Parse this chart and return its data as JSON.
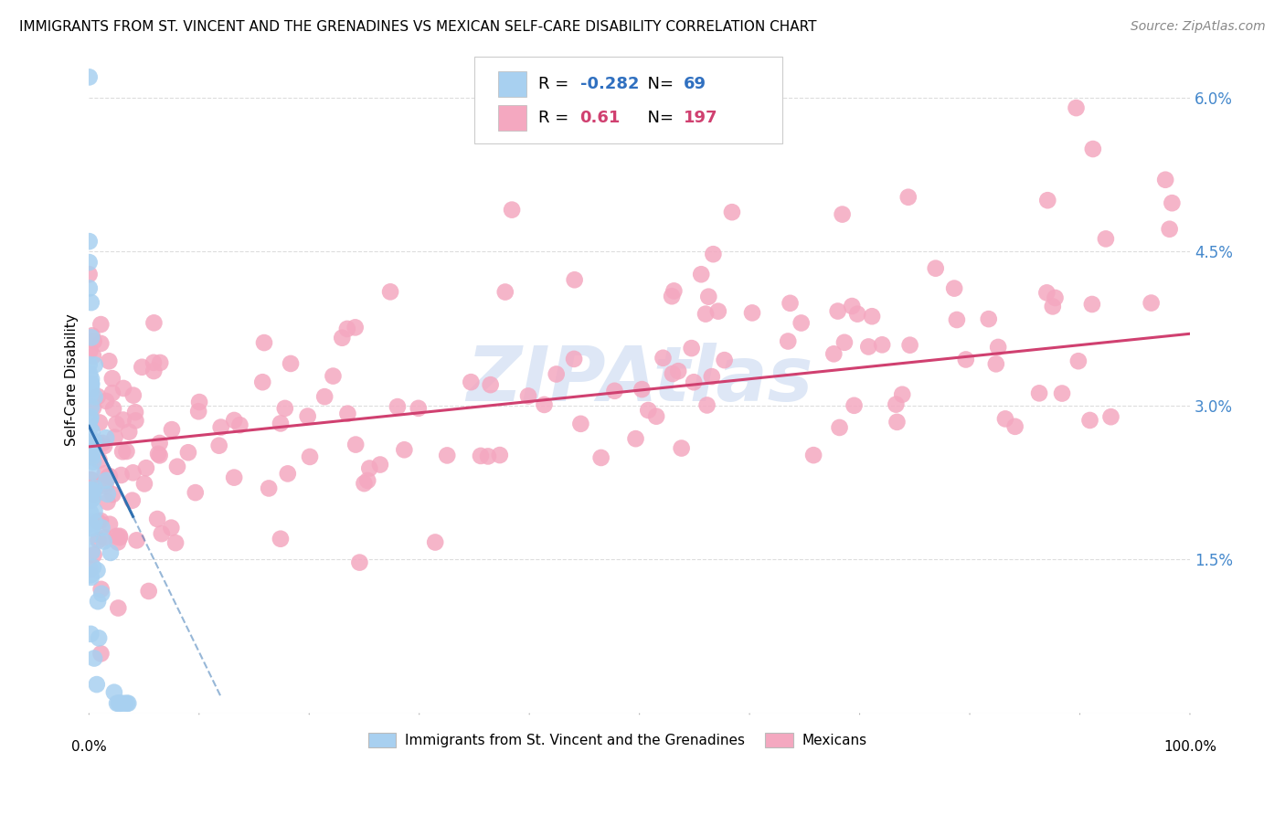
{
  "title": "IMMIGRANTS FROM ST. VINCENT AND THE GRENADINES VS MEXICAN SELF-CARE DISABILITY CORRELATION CHART",
  "source": "Source: ZipAtlas.com",
  "ylabel": "Self-Care Disability",
  "yticks": [
    0.0,
    0.015,
    0.03,
    0.045,
    0.06
  ],
  "ytick_labels": [
    "",
    "1.5%",
    "3.0%",
    "4.5%",
    "6.0%"
  ],
  "xmin": 0.0,
  "xmax": 1.0,
  "ymin": 0.0,
  "ymax": 0.065,
  "blue_R": -0.282,
  "blue_N": 69,
  "pink_R": 0.61,
  "pink_N": 197,
  "blue_color": "#a8d0f0",
  "pink_color": "#f4a8c0",
  "blue_edge": "#88bbdd",
  "pink_edge": "#e890a8",
  "blue_trend_color": "#3070b0",
  "pink_trend_color": "#d04070",
  "watermark_color": "#c8d8f0",
  "watermark_text": "ZIPAtlas",
  "legend_label_blue": "Immigrants from St. Vincent and the Grenadines",
  "legend_label_pink": "Mexicans",
  "blue_r_color": "#3070c0",
  "pink_r_color": "#d04070",
  "background_color": "#ffffff",
  "grid_color": "#dddddd",
  "axis_label_color": "#4488cc",
  "title_fontsize": 11,
  "source_fontsize": 10
}
